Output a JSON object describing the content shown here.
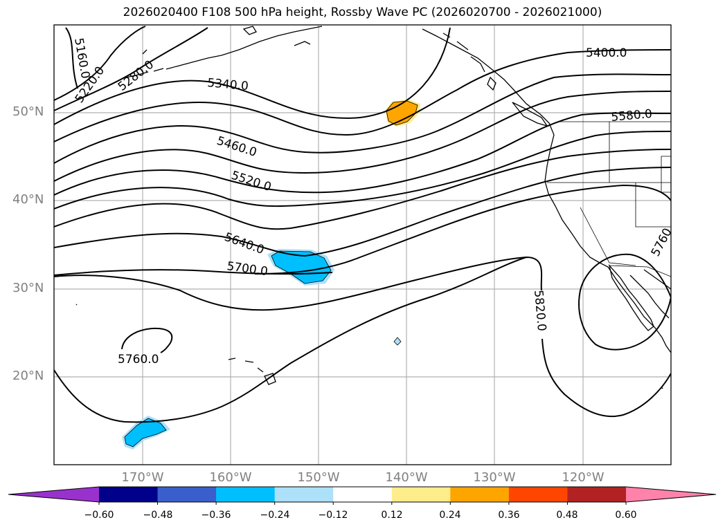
{
  "title": "2026020400 F108 500 hPa height, Rossby Wave PC (2026020700 - 2026021000)",
  "lat_labels": [
    "50°N",
    "40°N",
    "30°N",
    "20°N"
  ],
  "lon_labels": [
    "170°W",
    "160°W",
    "150°W",
    "140°W",
    "130°W",
    "120°W"
  ],
  "contour_labels": {
    "c5160": "5160.0",
    "c5220": "5220.0",
    "c5280": "5280.0",
    "c5340": "5340.0",
    "c5400": "5400.0",
    "c5460": "5460.0",
    "c5520": "5520.0",
    "c5580": "5580.0",
    "c5640": "5640.0",
    "c5700": "5700.0",
    "c5760": "5760.0",
    "c5760b": "5760",
    "c5820": "5820.0"
  },
  "colorbar": {
    "ticks": [
      "−0.60",
      "−0.48",
      "−0.36",
      "−0.24",
      "−0.12",
      "0.12",
      "0.24",
      "0.36",
      "0.48",
      "0.60"
    ],
    "colors": [
      "#9932CC",
      "#00008B",
      "#3A5FCD",
      "#00BFFF",
      "#ADE0F9",
      "#FFFFFF",
      "#FFEC8B",
      "#FFA500",
      "#FF4500",
      "#B22222",
      "#FF82AB"
    ]
  }
}
